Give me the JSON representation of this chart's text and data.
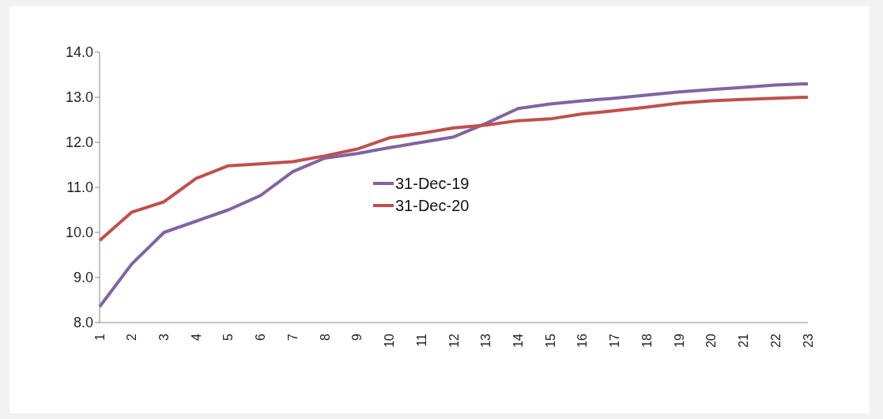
{
  "chart_data": {
    "type": "line",
    "categories": [
      "1",
      "2",
      "3",
      "4",
      "5",
      "6",
      "7",
      "8",
      "9",
      "10",
      "11",
      "12",
      "13",
      "14",
      "15",
      "16",
      "17",
      "18",
      "19",
      "20",
      "21",
      "22",
      "23"
    ],
    "series": [
      {
        "name": "31-Dec-19",
        "color": "#8064a2",
        "values": [
          8.35,
          9.3,
          10.0,
          10.25,
          10.5,
          10.82,
          11.35,
          11.65,
          11.75,
          11.88,
          12.0,
          12.12,
          12.42,
          12.75,
          12.85,
          12.92,
          12.98,
          13.05,
          13.12,
          13.17,
          13.22,
          13.27,
          13.3
        ]
      },
      {
        "name": "31-Dec-20",
        "color": "#c0504d",
        "values": [
          9.82,
          10.45,
          10.68,
          11.2,
          11.48,
          11.52,
          11.57,
          11.7,
          11.85,
          12.1,
          12.2,
          12.32,
          12.38,
          12.48,
          12.52,
          12.63,
          12.7,
          12.78,
          12.87,
          12.92,
          12.95,
          12.98,
          13.0
        ]
      }
    ],
    "ylim": [
      8,
      14
    ],
    "yticks": [
      {
        "value": 8,
        "label": "8.0"
      },
      {
        "value": 9,
        "label": "9.0"
      },
      {
        "value": 10,
        "label": "10.0"
      },
      {
        "value": 11,
        "label": "11.0"
      },
      {
        "value": 12,
        "label": "12.0"
      },
      {
        "value": 13,
        "label": "13.0"
      },
      {
        "value": 14,
        "label": "14.0"
      }
    ],
    "grid": false,
    "legend": "center",
    "marker": "none",
    "line_style": "solid"
  }
}
